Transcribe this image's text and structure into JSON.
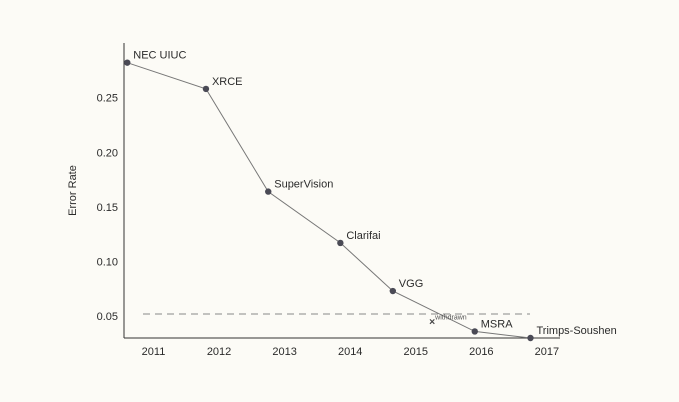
{
  "chart_data": {
    "type": "line",
    "title": "",
    "xlabel": "",
    "ylabel": "Error Rate",
    "xlim": [
      2010.55,
      2017.2
    ],
    "ylim": [
      0.03,
      0.3
    ],
    "x_ticks": [
      2011,
      2012,
      2013,
      2014,
      2015,
      2016,
      2017
    ],
    "y_ticks": [
      0.05,
      0.1,
      0.15,
      0.2,
      0.25
    ],
    "y_tick_labels": [
      "0.05",
      "0.10",
      "0.15",
      "0.20",
      "0.25"
    ],
    "grid": false,
    "series": [
      {
        "points": [
          {
            "x": 2010.6,
            "y": 0.282,
            "label": "NEC UIUC"
          },
          {
            "x": 2011.8,
            "y": 0.258,
            "label": "XRCE"
          },
          {
            "x": 2012.75,
            "y": 0.164,
            "label": "SuperVision"
          },
          {
            "x": 2013.85,
            "y": 0.117,
            "label": "Clarifai"
          },
          {
            "x": 2014.65,
            "y": 0.073,
            "label": "VGG"
          },
          {
            "x": 2015.9,
            "y": 0.036,
            "label": "MSRA"
          },
          {
            "x": 2016.75,
            "y": 0.03,
            "label": "Trimps-Soushen"
          }
        ]
      }
    ],
    "reference_line": {
      "y": 0.052,
      "style": "dashed"
    },
    "annotations": [
      {
        "x": 2015.25,
        "y": 0.045,
        "marker": "x",
        "text": "withdrawn"
      }
    ],
    "colors": {
      "line": "#777777",
      "point": "#4a4a55",
      "axis": "#333333",
      "reference": "#888888"
    }
  }
}
